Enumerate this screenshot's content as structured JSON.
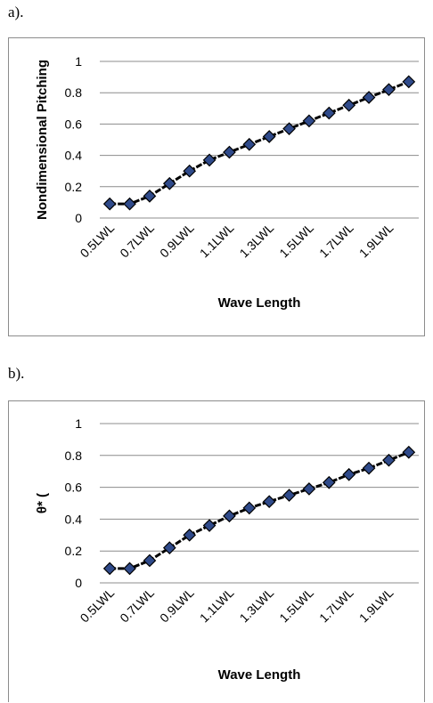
{
  "panels": [
    {
      "label": "a)."
    },
    {
      "label": "b)."
    }
  ],
  "colors": {
    "line": "#000000",
    "marker": "#2f4a8a",
    "grid": "#8c8c8c"
  },
  "chart_data": [
    {
      "type": "line",
      "categories": [
        "0.5LWL",
        "0.6LWL",
        "0.7LWL",
        "0.8LWL",
        "0.9LWL",
        "1.0LWL",
        "1.1LWL",
        "1.2LWL",
        "1.3LWL",
        "1.4LWL",
        "1.5LWL",
        "1.6LWL",
        "1.7LWL",
        "1.8LWL",
        "1.9LWL",
        "2.0LWL"
      ],
      "tick_labels": [
        "0.5LWL",
        "",
        "0.7LWL",
        "",
        "0.9LWL",
        "",
        "1.1LWL",
        "",
        "1.3LWL",
        "",
        "1.5LWL",
        "",
        "1.7LWL",
        "",
        "1.9LWL",
        ""
      ],
      "values": [
        0.09,
        0.09,
        0.14,
        0.22,
        0.3,
        0.37,
        0.42,
        0.47,
        0.52,
        0.57,
        0.62,
        0.67,
        0.72,
        0.77,
        0.82,
        0.87
      ],
      "xlabel": "Wave Length",
      "ylabel": "Nondimensional Pitching",
      "ylim": [
        0,
        1
      ],
      "yticks": [
        "0",
        "0.2",
        "0.4",
        "0.6",
        "0.8",
        "1"
      ],
      "grid": true
    },
    {
      "type": "line",
      "categories": [
        "0.5LWL",
        "0.6LWL",
        "0.7LWL",
        "0.8LWL",
        "0.9LWL",
        "1.0LWL",
        "1.1LWL",
        "1.2LWL",
        "1.3LWL",
        "1.4LWL",
        "1.5LWL",
        "1.6LWL",
        "1.7LWL",
        "1.8LWL",
        "1.9LWL",
        "2.0LWL"
      ],
      "tick_labels": [
        "0.5LWL",
        "",
        "0.7LWL",
        "",
        "0.9LWL",
        "",
        "1.1LWL",
        "",
        "1.3LWL",
        "",
        "1.5LWL",
        "",
        "1.7LWL",
        "",
        "1.9LWL",
        ""
      ],
      "values": [
        0.09,
        0.09,
        0.14,
        0.22,
        0.3,
        0.36,
        0.42,
        0.47,
        0.51,
        0.55,
        0.59,
        0.63,
        0.68,
        0.72,
        0.77,
        0.82
      ],
      "xlabel": "Wave Length",
      "ylabel": "θ* (",
      "ylim": [
        0,
        1
      ],
      "yticks": [
        "0",
        "0.2",
        "0.4",
        "0.6",
        "0.8",
        "1"
      ],
      "grid": true
    }
  ]
}
